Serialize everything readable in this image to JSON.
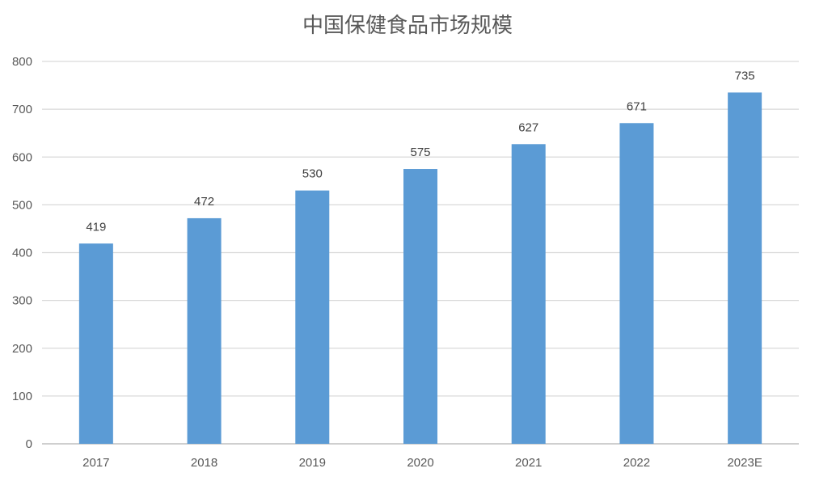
{
  "chart_data": {
    "type": "bar",
    "title": "中国保健食品市场规模",
    "categories": [
      "2017",
      "2018",
      "2019",
      "2020",
      "2021",
      "2022",
      "2023E"
    ],
    "series": [
      {
        "values": [
          419,
          472,
          530,
          575,
          627,
          671,
          735
        ]
      }
    ],
    "ylim": [
      0,
      800
    ],
    "yticks": [
      0,
      100,
      200,
      300,
      400,
      500,
      600,
      700,
      800
    ],
    "grid": true,
    "legend": "none",
    "bar_color": "#5b9bd5"
  }
}
